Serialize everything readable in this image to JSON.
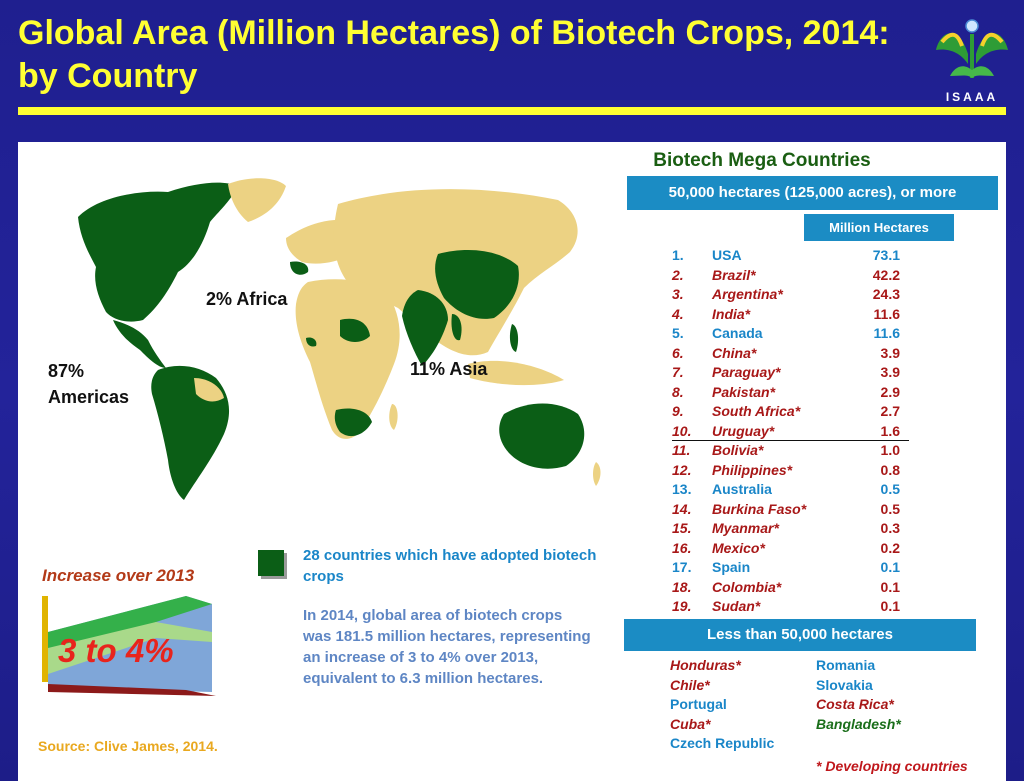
{
  "title": "Global Area (Million Hectares) of Biotech Crops, 2014: by Country",
  "logo": {
    "label": "ISAAA",
    "icon": "isaaa-leaf-logo-icon"
  },
  "map": {
    "labels": {
      "africa": "2% Africa",
      "americas_pct": "87%",
      "americas": "Americas",
      "asia": "11% Asia"
    }
  },
  "legend": {
    "text": "28 countries which have adopted biotech crops"
  },
  "summary": "In 2014, global area of biotech crops was 181.5 million hectares, representing an increase of 3 to 4% over 2013, equivalent to 6.3 million hectares.",
  "increase": {
    "title": "Increase over 2013",
    "value": "3 to 4%"
  },
  "source": "Source: Clive James, 2014.",
  "mega": {
    "title": "Biotech Mega Countries",
    "threshold": "50,000 hectares (125,000 acres), or more",
    "unit_header": "Million Hectares"
  },
  "countries": [
    {
      "rank": "1.",
      "name": "USA",
      "value": "73.1",
      "developing": false
    },
    {
      "rank": "2.",
      "name": "Brazil*",
      "value": "42.2",
      "developing": true
    },
    {
      "rank": "3.",
      "name": "Argentina*",
      "value": "24.3",
      "developing": true
    },
    {
      "rank": "4.",
      "name": "India*",
      "value": "11.6",
      "developing": true
    },
    {
      "rank": "5.",
      "name": "Canada",
      "value": "11.6",
      "developing": false
    },
    {
      "rank": "6.",
      "name": "China*",
      "value": "3.9",
      "developing": true
    },
    {
      "rank": "7.",
      "name": "Paraguay*",
      "value": "3.9",
      "developing": true
    },
    {
      "rank": "8.",
      "name": "Pakistan*",
      "value": "2.9",
      "developing": true
    },
    {
      "rank": "9.",
      "name": "South Africa*",
      "value": "2.7",
      "developing": true
    },
    {
      "rank": "10.",
      "name": "Uruguay*",
      "value": "1.6",
      "developing": true
    },
    {
      "rank": "11.",
      "name": "Bolivia*",
      "value": "1.0",
      "developing": true
    },
    {
      "rank": "12.",
      "name": "Philippines*",
      "value": "0.8",
      "developing": true
    },
    {
      "rank": "13.",
      "name": "Australia",
      "value": "0.5",
      "developing": false
    },
    {
      "rank": "14.",
      "name": "Burkina Faso*",
      "value": "0.5",
      "developing": true
    },
    {
      "rank": "15.",
      "name": "Myanmar*",
      "value": "0.3",
      "developing": true
    },
    {
      "rank": "16.",
      "name": "Mexico*",
      "value": "0.2",
      "developing": true
    },
    {
      "rank": "17.",
      "name": "Spain",
      "value": "0.1",
      "developing": false
    },
    {
      "rank": "18.",
      "name": "Colombia*",
      "value": "0.1",
      "developing": true
    },
    {
      "rank": "19.",
      "name": "Sudan*",
      "value": "0.1",
      "developing": true
    }
  ],
  "less": {
    "title": "Less than 50,000 hectares",
    "left": [
      {
        "name": "Honduras*",
        "style": "dev"
      },
      {
        "name": "Chile*",
        "style": "dev"
      },
      {
        "name": "Portugal",
        "style": "ind"
      },
      {
        "name": "Cuba*",
        "style": "dev"
      },
      {
        "name": "Czech Republic",
        "style": "ind"
      }
    ],
    "right": [
      {
        "name": "Romania",
        "style": "ind"
      },
      {
        "name": "Slovakia",
        "style": "ind"
      },
      {
        "name": "Costa Rica*",
        "style": "dev"
      },
      {
        "name": "Bangladesh*",
        "style": "devg"
      }
    ]
  },
  "footnote": "* Developing countries",
  "colors": {
    "biotech": "#0b5e16",
    "other_land": "#ecd283",
    "accent": "#ffff33",
    "bar": "#1b8cc4"
  }
}
